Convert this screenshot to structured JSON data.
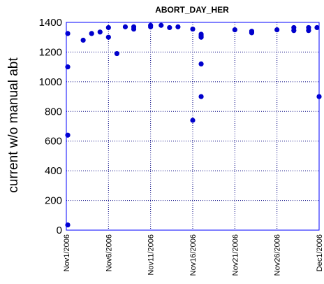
{
  "chart_data": {
    "type": "scatter",
    "title": "ABORT_DAY_HER",
    "xlabel": "",
    "ylabel": "current w/o manual abt",
    "xlim": [
      "2006-11-01",
      "2006-12-01"
    ],
    "ylim": [
      0,
      1400
    ],
    "x_ticks": [
      "Nov1/2006",
      "Nov6/2006",
      "Nov11/2006",
      "Nov16/2006",
      "Nov21/2006",
      "Nov26/2006",
      "Dec1/2006"
    ],
    "y_ticks": [
      0,
      200,
      400,
      600,
      800,
      1000,
      1200,
      1400
    ],
    "grid": true,
    "colors": {
      "points": "#0000cc",
      "axes": "#0000ff",
      "grid": "#000080"
    },
    "points": [
      {
        "x": "2006-11-01 04:00",
        "y": 1325
      },
      {
        "x": "2006-11-01 04:00",
        "y": 1100
      },
      {
        "x": "2006-11-01 04:00",
        "y": 640
      },
      {
        "x": "2006-11-01 04:00",
        "y": 35
      },
      {
        "x": "2006-11-03 00:00",
        "y": 1280
      },
      {
        "x": "2006-11-04 00:00",
        "y": 1325
      },
      {
        "x": "2006-11-05 00:00",
        "y": 1335
      },
      {
        "x": "2006-11-06 00:00",
        "y": 1365
      },
      {
        "x": "2006-11-06 00:00",
        "y": 1300
      },
      {
        "x": "2006-11-07 00:00",
        "y": 1190
      },
      {
        "x": "2006-11-08 00:00",
        "y": 1370
      },
      {
        "x": "2006-11-09 00:00",
        "y": 1370
      },
      {
        "x": "2006-11-09 00:00",
        "y": 1355
      },
      {
        "x": "2006-11-11 00:00",
        "y": 1380
      },
      {
        "x": "2006-11-11 00:00",
        "y": 1370
      },
      {
        "x": "2006-11-12 06:00",
        "y": 1380
      },
      {
        "x": "2006-11-13 06:00",
        "y": 1365
      },
      {
        "x": "2006-11-14 06:00",
        "y": 1370
      },
      {
        "x": "2006-11-16 00:00",
        "y": 1355
      },
      {
        "x": "2006-11-16 00:00",
        "y": 740
      },
      {
        "x": "2006-11-17 00:00",
        "y": 1320
      },
      {
        "x": "2006-11-17 00:00",
        "y": 1310
      },
      {
        "x": "2006-11-17 00:00",
        "y": 1300
      },
      {
        "x": "2006-11-17 00:00",
        "y": 1120
      },
      {
        "x": "2006-11-17 00:00",
        "y": 900
      },
      {
        "x": "2006-11-21 00:00",
        "y": 1350
      },
      {
        "x": "2006-11-23 00:00",
        "y": 1340
      },
      {
        "x": "2006-11-23 00:00",
        "y": 1330
      },
      {
        "x": "2006-11-26 00:00",
        "y": 1350
      },
      {
        "x": "2006-11-28 00:00",
        "y": 1365
      },
      {
        "x": "2006-11-28 00:00",
        "y": 1345
      },
      {
        "x": "2006-11-29 18:00",
        "y": 1365
      },
      {
        "x": "2006-11-29 18:00",
        "y": 1345
      },
      {
        "x": "2006-11-30 18:00",
        "y": 1365
      },
      {
        "x": "2006-12-01 00:00",
        "y": 900
      }
    ]
  }
}
